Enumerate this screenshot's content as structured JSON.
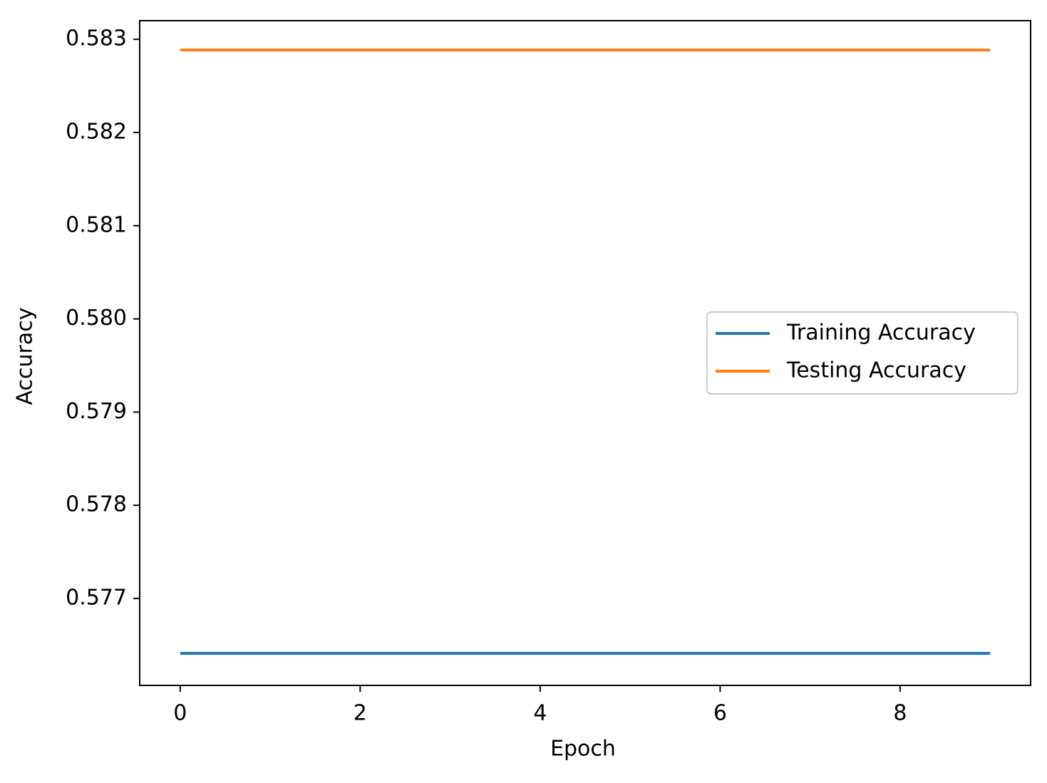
{
  "chart_data": {
    "type": "line",
    "x_label": "Epoch",
    "y_label": "Accuracy",
    "x": [
      0,
      1,
      2,
      3,
      4,
      5,
      6,
      7,
      8,
      9
    ],
    "series": [
      {
        "name": "Training Accuracy",
        "color": "#1f77b4",
        "values": [
          0.576411,
          0.576411,
          0.576411,
          0.576411,
          0.576411,
          0.576411,
          0.576411,
          0.576411,
          0.576411,
          0.576411
        ]
      },
      {
        "name": "Testing Accuracy",
        "color": "#ff7f0e",
        "values": [
          0.582885,
          0.582885,
          0.582885,
          0.582885,
          0.582885,
          0.582885,
          0.582885,
          0.582885,
          0.582885,
          0.582885
        ]
      }
    ],
    "xlim": [
      -0.45,
      9.45
    ],
    "xticks": [
      0,
      2,
      4,
      6,
      8
    ],
    "ylim": [
      0.576067,
      0.5832
    ],
    "yticks": [
      0.577,
      0.578,
      0.579,
      {
        "value": 0.58,
        "label": "0.580"
      },
      0.581,
      0.582,
      0.583
    ],
    "legend": "center right",
    "grid": false
  }
}
